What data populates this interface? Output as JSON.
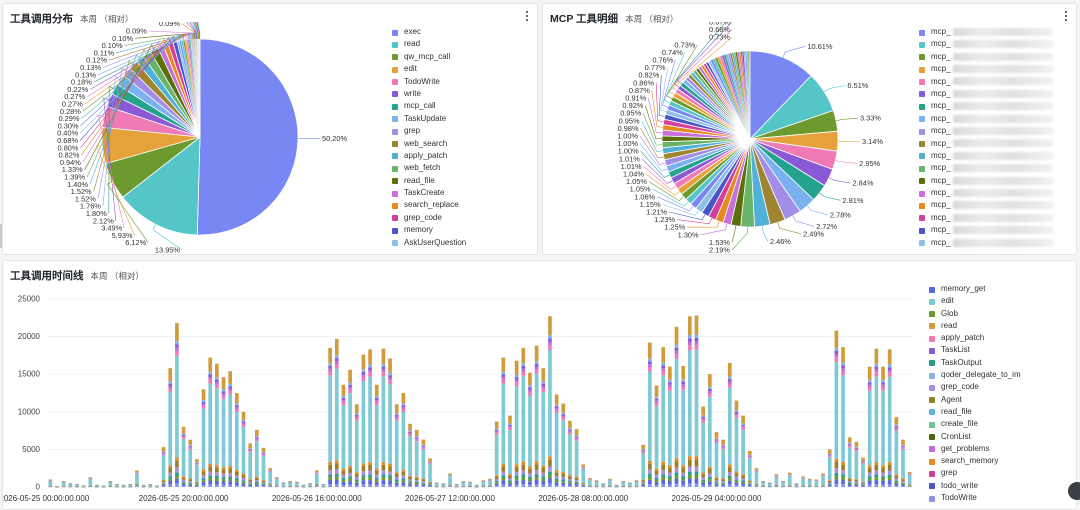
{
  "palette": [
    "#7987f4",
    "#54c6c8",
    "#6c9a2e",
    "#e5a23b",
    "#f07ab5",
    "#8a5ad6",
    "#23a38e",
    "#7ab2f0",
    "#a28de8",
    "#9f8431",
    "#4fb0d8",
    "#68b468",
    "#5b6f0a",
    "#c96fd8",
    "#e48a1f",
    "#d43f9c",
    "#4a56c7",
    "#8cc0e8"
  ],
  "tools_panel": {
    "title": "工具调用分布",
    "subtitle": "本周 （相对）",
    "chart_data": {
      "type": "pie",
      "title": "工具调用分布",
      "slices": [
        {
          "name": "exec",
          "value": 50.2
        },
        {
          "name": "read",
          "value": 13.95
        },
        {
          "name": "qw_mcp_call",
          "value": 6.12
        },
        {
          "name": "edit",
          "value": 5.93
        },
        {
          "name": "TodoWrite",
          "value": 3.49
        },
        {
          "name": "write",
          "value": 2.12
        },
        {
          "name": "mcp_call",
          "value": 1.8
        },
        {
          "name": "TaskUpdate",
          "value": 1.76
        },
        {
          "name": "grep",
          "value": 1.52
        },
        {
          "name": "web_search",
          "value": 1.52
        },
        {
          "name": "apply_patch",
          "value": 1.4
        },
        {
          "name": "web_fetch",
          "value": 1.39
        },
        {
          "name": "read_file",
          "value": 1.33
        },
        {
          "name": "TaskCreate",
          "value": 0.94
        },
        {
          "name": "search_replace",
          "value": 0.82
        },
        {
          "name": "grep_code",
          "value": 0.8
        },
        {
          "name": "memory",
          "value": 0.68
        },
        {
          "name": "AskUserQuestion",
          "value": 0.4
        },
        {
          "value": 0.3
        },
        {
          "value": 0.29
        },
        {
          "value": 0.28
        },
        {
          "value": 0.27
        },
        {
          "value": 0.27
        },
        {
          "value": 0.22
        },
        {
          "value": 0.18
        },
        {
          "value": 0.13
        },
        {
          "value": 0.13
        },
        {
          "value": 0.12
        },
        {
          "value": 0.11
        },
        {
          "value": 0.1
        },
        {
          "value": 0.1
        },
        {
          "value": 0.09
        },
        {
          "value": 0.09
        },
        {
          "value": 0.08
        },
        {
          "value": 0.08
        },
        {
          "value": 0.07
        },
        {
          "value": 0.07
        },
        {
          "value": 0.06
        },
        {
          "value": 0.06
        },
        {
          "value": 0.06
        },
        {
          "value": 0.05
        },
        {
          "value": 0.05
        },
        {
          "value": 0.04
        },
        {
          "value": 0.04
        }
      ],
      "legend": [
        "exec",
        "read",
        "qw_mcp_call",
        "edit",
        "TodoWrite",
        "write",
        "mcp_call",
        "TaskUpdate",
        "grep",
        "web_search",
        "apply_patch",
        "web_fetch",
        "read_file",
        "TaskCreate",
        "search_replace",
        "grep_code",
        "memory",
        "AskUserQuestion"
      ],
      "legend_placement": "right"
    }
  },
  "mcp_panel": {
    "title": "MCP 工具明细",
    "subtitle": "本周 （相对）",
    "chart_data": {
      "type": "pie",
      "title": "MCP 工具明细",
      "slices": [
        {
          "value": 10.61
        },
        {
          "value": 6.51
        },
        {
          "value": 3.33
        },
        {
          "value": 3.14
        },
        {
          "value": 2.95
        },
        {
          "value": 2.84
        },
        {
          "value": 2.81
        },
        {
          "value": 2.78
        },
        {
          "value": 2.72
        },
        {
          "value": 2.49
        },
        {
          "value": 2.46
        },
        {
          "value": 2.19
        },
        {
          "value": 1.53
        },
        {
          "value": 1.3
        },
        {
          "value": 1.25
        },
        {
          "value": 1.23
        },
        {
          "value": 1.21
        },
        {
          "value": 1.15
        },
        {
          "value": 1.06
        },
        {
          "value": 1.05
        },
        {
          "value": 1.05
        },
        {
          "value": 1.04
        },
        {
          "value": 1.01
        },
        {
          "value": 1.01
        },
        {
          "value": 1.0
        },
        {
          "value": 1.0
        },
        {
          "value": 1.0
        },
        {
          "value": 0.98
        },
        {
          "value": 0.95
        },
        {
          "value": 0.95
        },
        {
          "value": 0.92
        },
        {
          "value": 0.91
        },
        {
          "value": 0.87
        },
        {
          "value": 0.86
        },
        {
          "value": 0.82
        },
        {
          "value": 0.77
        },
        {
          "value": 0.76
        },
        {
          "value": 0.74
        },
        {
          "value": 0.73
        },
        {
          "value": 0.73
        },
        {
          "value": 0.68
        },
        {
          "value": 0.67
        },
        {
          "value": 0.66
        },
        {
          "value": 0.6
        },
        {
          "value": 0.58
        },
        {
          "value": 0.56
        },
        {
          "value": 0.54
        },
        {
          "value": 0.52
        },
        {
          "value": 0.5
        },
        {
          "value": 0.48
        },
        {
          "value": 0.46
        },
        {
          "value": 0.45
        },
        {
          "value": 0.44
        },
        {
          "value": 0.42
        },
        {
          "value": 0.4
        },
        {
          "value": 0.39
        },
        {
          "value": 0.38
        },
        {
          "value": 0.37
        },
        {
          "value": 0.36
        },
        {
          "value": 0.35
        },
        {
          "value": 0.34
        },
        {
          "value": 0.33
        },
        {
          "value": 0.32
        },
        {
          "value": 0.31
        },
        {
          "value": 0.3
        },
        {
          "value": 0.29
        },
        {
          "value": 0.28
        },
        {
          "value": 0.27
        },
        {
          "value": 0.26
        },
        {
          "value": 0.25
        },
        {
          "value": 0.24
        },
        {
          "value": 0.23
        },
        {
          "value": 0.22
        },
        {
          "value": 0.2
        },
        {
          "value": 0.18
        },
        {
          "value": 0.16
        }
      ],
      "legend": [
        "mcp_",
        "mcp_",
        "mcp_",
        "mcp_",
        "mcp_",
        "mcp_",
        "mcp_",
        "mcp_",
        "mcp_",
        "mcp_",
        "mcp_",
        "mcp_",
        "mcp_",
        "mcp_",
        "mcp_",
        "mcp_",
        "mcp_",
        "mcp_"
      ],
      "legend_placement": "right"
    }
  },
  "timeline_panel": {
    "title": "工具调用时间线",
    "subtitle": "本周 （相对）",
    "chart_data": {
      "type": "bar",
      "stacked": true,
      "ylim": [
        0,
        25000
      ],
      "y_ticks": [
        0,
        5000,
        10000,
        15000,
        20000,
        25000
      ],
      "x_tick_labels": [
        "2026-05-25 00:00:00.000",
        "2026-05-25 20:00:00.000",
        "2026-05-26 16:00:00.000",
        "2026-05-27 12:00:00.000",
        "2026-05-28 08:00:00.000",
        "2026-05-29 04:00:00.000"
      ],
      "x_tick_bar_index": [
        0,
        20,
        40,
        60,
        80,
        100
      ],
      "totals": [
        1000,
        100,
        800,
        500,
        400,
        200,
        1300,
        300,
        200,
        800,
        400,
        300,
        400,
        2200,
        300,
        400,
        200,
        5300,
        15800,
        21800,
        8000,
        6300,
        3700,
        13000,
        17200,
        16400,
        14600,
        15400,
        12500,
        10000,
        5800,
        7600,
        5200,
        2500,
        1300,
        600,
        800,
        700,
        300,
        500,
        2200,
        400,
        18500,
        19700,
        13600,
        15600,
        11000,
        17600,
        18300,
        13600,
        18400,
        17100,
        11000,
        12500,
        8400,
        7600,
        6300,
        3800,
        600,
        500,
        1800,
        400,
        800,
        700,
        300,
        900,
        1100,
        8700,
        17200,
        9500,
        16800,
        18500,
        15200,
        18800,
        15800,
        22700,
        12300,
        11100,
        8800,
        7700,
        3000,
        1200,
        900,
        500,
        1100,
        300,
        800,
        600,
        900,
        5600,
        19200,
        13500,
        18600,
        16000,
        21300,
        16100,
        22700,
        22800,
        10700,
        15000,
        7300,
        6300,
        16500,
        11500,
        9500,
        4800,
        2500,
        800,
        600,
        1700,
        800,
        1900,
        500,
        1400,
        1100,
        1000,
        1800,
        5000,
        20800,
        18600,
        6600,
        6000,
        3900,
        16000,
        18400,
        16000,
        18300,
        9300,
        6300,
        2000
      ],
      "series": [
        "memory_get",
        "edit",
        "Glob",
        "read",
        "apply_patch",
        "TaskList",
        "TaskOutput",
        "qoder_delegate_to_im",
        "grep_code",
        "Agent",
        "read_file",
        "create_file",
        "CronList",
        "get_problems",
        "search_memory",
        "grep",
        "todo_write",
        "TodoWrite"
      ],
      "series_colors": [
        "#5967e6",
        "#7dc9d6",
        "#6b9a2d",
        "#d39a3a",
        "#f07ab5",
        "#8a5ad6",
        "#22a087",
        "#86b2e6",
        "#a78fe2",
        "#9c7d2c",
        "#64b3dd",
        "#6bc28f",
        "#50680d",
        "#c26dd6",
        "#e48a1f",
        "#d43f9c",
        "#4a56c7",
        "#8a94e8"
      ],
      "legend_placement": "right"
    }
  }
}
